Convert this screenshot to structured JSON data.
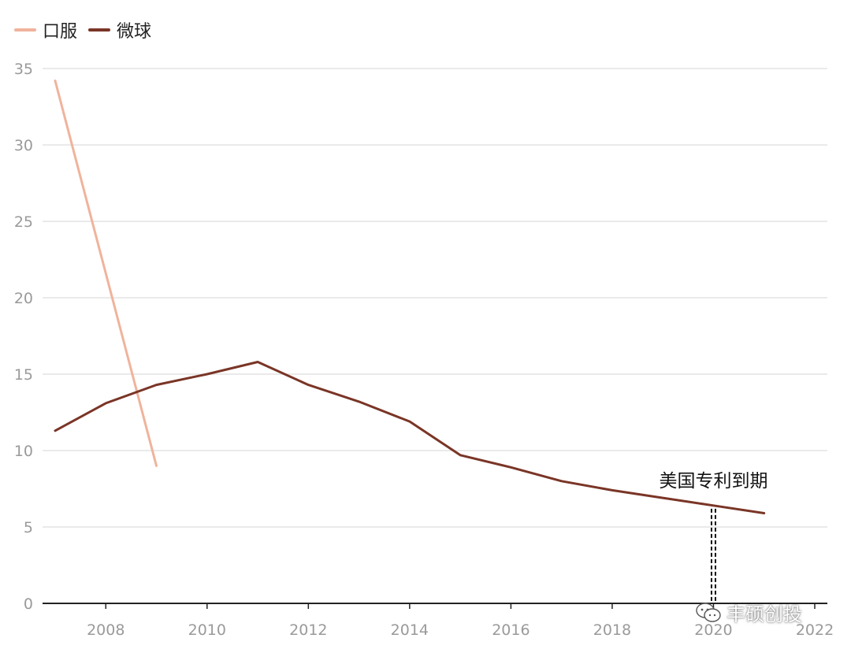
{
  "chart_data": {
    "type": "line",
    "title": "",
    "xlabel": "",
    "ylabel": "",
    "xlim": [
      2006.8,
      2022
    ],
    "ylim": [
      0,
      35
    ],
    "x_ticks": [
      2008,
      2010,
      2012,
      2014,
      2016,
      2018,
      2020,
      2022
    ],
    "y_ticks": [
      0,
      5,
      10,
      15,
      20,
      25,
      30,
      35
    ],
    "grid": "horizontal",
    "legend_position": "top-left",
    "series": [
      {
        "name": "口服",
        "color": "#f0b39c",
        "points": [
          [
            2007,
            34.2
          ],
          [
            2009,
            9.0
          ]
        ]
      },
      {
        "name": "微球",
        "color": "#7a3526",
        "points": [
          [
            2007,
            11.3
          ],
          [
            2008,
            13.1
          ],
          [
            2009,
            14.3
          ],
          [
            2010,
            15.0
          ],
          [
            2011,
            15.8
          ],
          [
            2012,
            14.3
          ],
          [
            2013,
            13.2
          ],
          [
            2014,
            11.9
          ],
          [
            2015,
            9.7
          ],
          [
            2016,
            8.9
          ],
          [
            2017,
            8.0
          ],
          [
            2018,
            7.4
          ],
          [
            2019,
            6.9
          ],
          [
            2020,
            6.4
          ],
          [
            2021,
            5.9
          ]
        ]
      }
    ],
    "annotation": {
      "text": "美国专利到期",
      "x": 2020,
      "y": 6.4
    }
  },
  "watermark": {
    "text": "丰硕创投",
    "icon": "wechat-icon"
  }
}
